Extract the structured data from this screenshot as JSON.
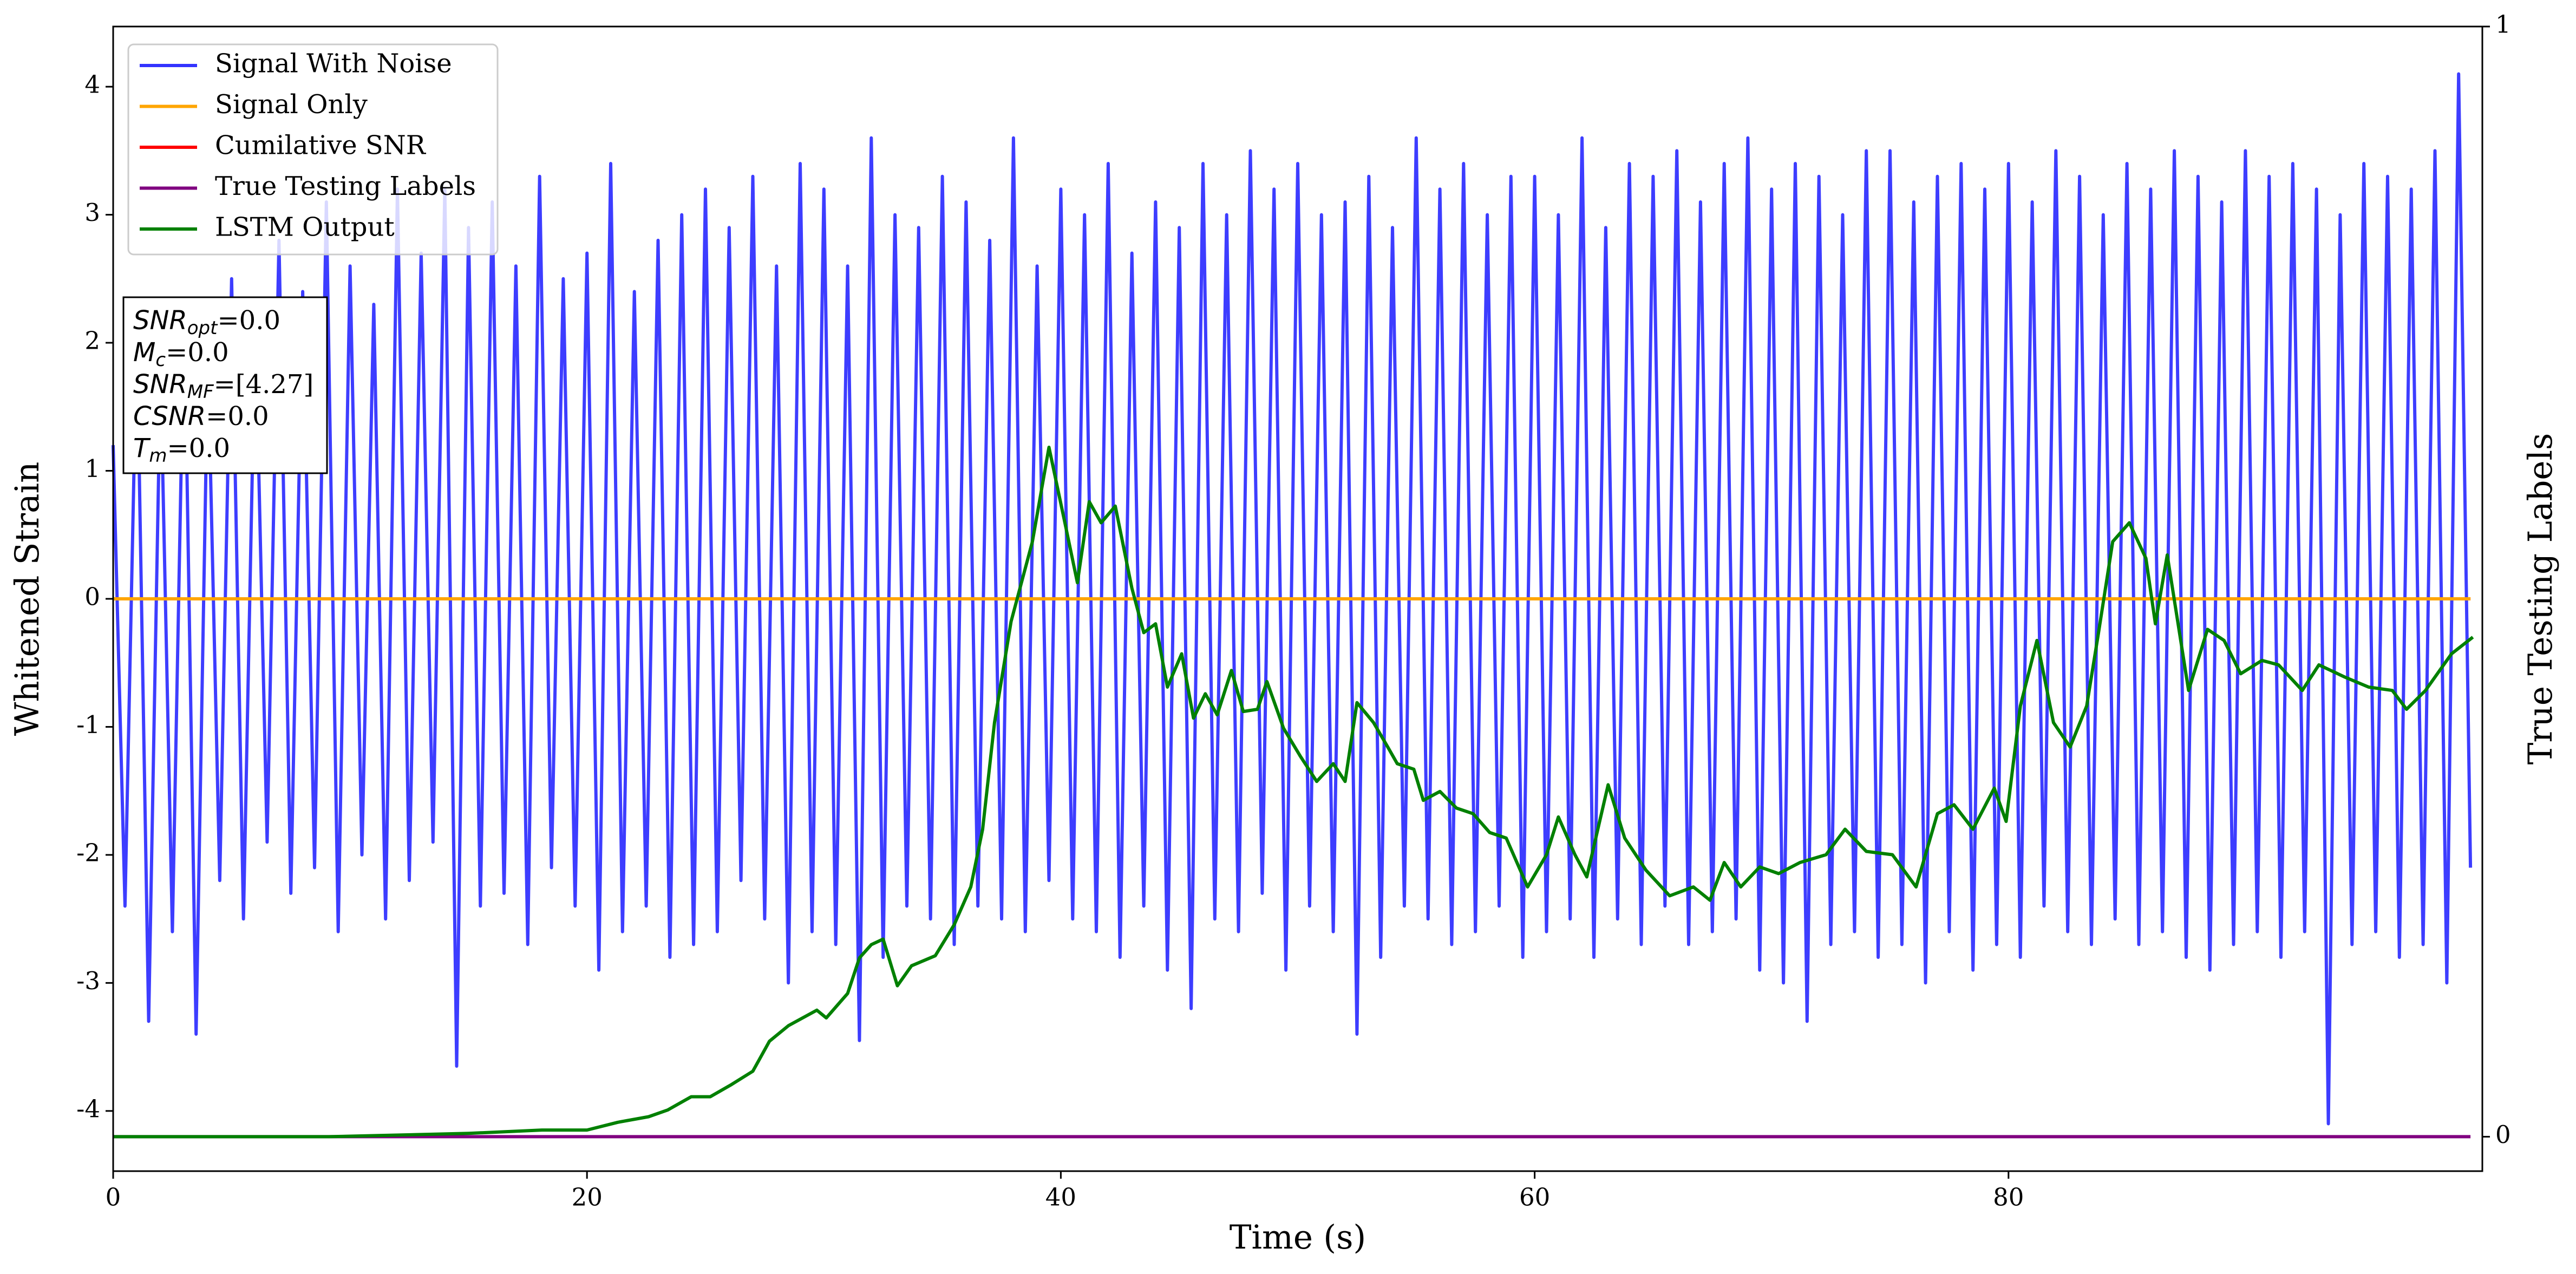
{
  "chart_data": {
    "type": "line",
    "xlabel": "Time (s)",
    "ylabel": "Whitened Strain",
    "y2label": "True Testing Labels",
    "xlim": [
      0,
      100
    ],
    "ylim": [
      -4.47,
      4.47
    ],
    "y2lim": [
      -0.031,
      1
    ],
    "xticks": [
      0,
      20,
      40,
      60,
      80
    ],
    "yticks": [
      -4,
      -3,
      -2,
      -1,
      0,
      1,
      2,
      3,
      4
    ],
    "y2ticks": [
      0,
      1
    ],
    "legend": "upper left",
    "annotation": [
      {
        "symbol": "SNR",
        "subscript": "opt",
        "text": "=0.0"
      },
      {
        "symbol": "M",
        "subscript": "c",
        "text": "=0.0"
      },
      {
        "symbol": "SNR",
        "subscript": "MF",
        "text": "=[4.27]"
      },
      {
        "symbol": "CSNR",
        "text": "=0.0"
      },
      {
        "symbol": "T",
        "subscript": "m",
        "text": "=0.0"
      }
    ],
    "series": [
      {
        "name": "Signal With Noise",
        "color": "#3333ff",
        "axis": "y",
        "x": [
          0,
          0.5,
          1,
          1.5,
          2,
          2.5,
          3,
          3.5,
          4,
          4.5,
          5,
          5.5,
          6,
          6.5,
          7,
          7.5,
          8,
          8.5,
          9,
          9.5,
          10,
          10.5,
          11,
          11.5,
          12,
          12.5,
          13,
          13.5,
          14,
          14.5,
          15,
          15.5,
          16,
          16.5,
          17,
          17.5,
          18,
          18.5,
          19,
          19.5,
          20,
          20.5,
          21,
          21.5,
          22,
          22.5,
          23,
          23.5,
          24,
          24.5,
          25,
          25.5,
          26,
          26.5,
          27,
          27.5,
          28,
          28.5,
          29,
          29.5,
          30,
          30.5,
          31,
          31.5,
          32,
          32.5,
          33,
          33.5,
          34,
          34.5,
          35,
          35.5,
          36,
          36.5,
          37,
          37.5,
          38,
          38.5,
          39,
          39.5,
          40,
          40.5,
          41,
          41.5,
          42,
          42.5,
          43,
          43.5,
          44,
          44.5,
          45,
          45.5,
          46,
          46.5,
          47,
          47.5,
          48,
          48.5,
          49,
          49.5,
          50,
          50.5,
          51,
          51.5,
          52,
          52.5,
          53,
          53.5,
          54,
          54.5,
          55,
          55.5,
          56,
          56.5,
          57,
          57.5,
          58,
          58.5,
          59,
          59.5,
          60,
          60.5,
          61,
          61.5,
          62,
          62.5,
          63,
          63.5,
          64,
          64.5,
          65,
          65.5,
          66,
          66.5,
          67,
          67.5,
          68,
          68.5,
          69,
          69.5,
          70,
          70.5,
          71,
          71.5,
          72,
          72.5,
          73,
          73.5,
          74,
          74.5,
          75,
          75.5,
          76,
          76.5,
          77,
          77.5,
          78,
          78.5,
          79,
          79.5,
          80,
          80.5,
          81,
          81.5,
          82,
          82.5,
          83,
          83.5,
          84,
          84.5,
          85,
          85.5,
          86,
          86.5,
          87,
          87.5,
          88,
          88.5,
          89,
          89.5,
          90,
          90.5,
          91,
          91.5,
          92,
          92.5,
          93,
          93.5,
          94,
          94.5,
          95,
          95.5,
          96,
          96.5,
          97,
          97.5,
          98,
          98.5,
          99,
          99.5
        ],
        "values": [
          1.2,
          -2.4,
          2.1,
          -3.3,
          1.8,
          -2.6,
          2.3,
          -3.4,
          1.9,
          -2.2,
          2.5,
          -2.5,
          2.2,
          -1.9,
          2.8,
          -2.3,
          2.4,
          -2.1,
          3.1,
          -2.6,
          2.6,
          -2.0,
          2.3,
          -2.5,
          3.2,
          -2.2,
          2.7,
          -1.9,
          3.2,
          -3.65,
          2.9,
          -2.4,
          3.1,
          -2.3,
          2.6,
          -2.7,
          3.3,
          -2.1,
          2.5,
          -2.4,
          2.7,
          -2.9,
          3.4,
          -2.6,
          2.4,
          -2.4,
          2.8,
          -2.8,
          3.0,
          -2.7,
          3.2,
          -2.6,
          2.9,
          -2.2,
          3.3,
          -2.5,
          2.6,
          -3.0,
          3.4,
          -2.6,
          3.2,
          -2.7,
          2.6,
          -3.45,
          3.6,
          -2.8,
          3.0,
          -2.4,
          2.9,
          -2.5,
          3.3,
          -2.7,
          3.1,
          -2.4,
          2.8,
          -2.5,
          3.6,
          -2.6,
          2.6,
          -2.2,
          3.2,
          -2.5,
          3.0,
          -2.6,
          3.4,
          -2.8,
          2.7,
          -2.4,
          3.1,
          -2.9,
          2.9,
          -3.2,
          3.4,
          -2.5,
          3.0,
          -2.6,
          3.5,
          -2.3,
          3.2,
          -2.9,
          3.4,
          -2.4,
          3.0,
          -2.6,
          3.1,
          -3.4,
          3.3,
          -2.8,
          2.9,
          -2.4,
          3.6,
          -2.5,
          3.2,
          -2.7,
          3.4,
          -2.6,
          3.0,
          -2.4,
          3.3,
          -2.8,
          3.3,
          -2.6,
          3.0,
          -2.5,
          3.6,
          -2.8,
          2.9,
          -2.5,
          3.4,
          -2.7,
          3.3,
          -2.4,
          3.5,
          -2.7,
          3.1,
          -2.6,
          3.4,
          -2.5,
          3.6,
          -2.9,
          3.2,
          -3.0,
          3.4,
          -3.3,
          3.3,
          -2.7,
          3.0,
          -2.6,
          3.5,
          -2.8,
          3.5,
          -2.7,
          3.1,
          -3.0,
          3.3,
          -2.6,
          3.4,
          -2.9,
          3.2,
          -2.7,
          3.4,
          -2.8,
          3.1,
          -2.4,
          3.5,
          -2.6,
          3.3,
          -2.7,
          3.0,
          -2.5,
          3.4,
          -2.7,
          3.2,
          -2.6,
          3.5,
          -2.8,
          3.3,
          -2.9,
          3.1,
          -2.7,
          3.5,
          -2.6,
          3.3,
          -2.8,
          3.4,
          -2.6,
          3.2,
          -4.1,
          3.0,
          -2.7,
          3.4,
          -2.6,
          3.3,
          -2.8,
          3.2,
          -2.7,
          3.5,
          -3.0,
          4.1,
          -2.1
        ]
      },
      {
        "name": "Cumilative SNR",
        "color": "#ff0000",
        "axis": "y",
        "x": [
          0,
          99.5
        ],
        "values": [
          0,
          0
        ]
      },
      {
        "name": "Signal Only",
        "color": "#ffa500",
        "axis": "y",
        "x": [
          0,
          99.5
        ],
        "values": [
          0,
          0
        ]
      },
      {
        "name": "True Testing Labels",
        "color": "#800080",
        "axis": "y2",
        "x": [
          0,
          99.5
        ],
        "values": [
          0,
          0
        ]
      },
      {
        "name": "LSTM Output",
        "color": "#008000",
        "axis": "y2",
        "x": [
          0,
          9.1,
          15,
          18.1,
          20,
          21.3,
          22.6,
          23.4,
          24.4,
          25.2,
          26.1,
          27,
          27.7,
          28.5,
          29.7,
          30.1,
          31,
          31.5,
          32,
          32.5,
          33.1,
          33.7,
          34.7,
          35.5,
          36.2,
          36.7,
          37.2,
          37.9,
          38.8,
          39.5,
          40.2,
          40.7,
          41.2,
          41.7,
          42.3,
          43,
          43.5,
          44,
          44.5,
          45.1,
          45.6,
          46.1,
          46.6,
          47.2,
          47.7,
          48.3,
          48.7,
          49.4,
          50.1,
          50.8,
          51.5,
          52,
          52.5,
          53.2,
          53.8,
          54.2,
          54.9,
          55.3,
          56,
          56.7,
          57.4,
          58.1,
          58.8,
          59.7,
          60.5,
          61,
          61.7,
          62.2,
          63.1,
          63.8,
          64.7,
          65.7,
          66.7,
          67.4,
          68,
          68.7,
          69.5,
          70.3,
          71.2,
          72.3,
          73.1,
          74,
          75.1,
          76.1,
          77,
          77.7,
          78.5,
          79.4,
          79.9,
          80.5,
          81.2,
          81.9,
          82.6,
          83.3,
          83.8,
          84.4,
          85.1,
          85.8,
          86.2,
          86.7,
          87.6,
          88.4,
          89.1,
          89.8,
          90.7,
          91.4,
          92.4,
          93.1,
          94.2,
          95.2,
          96.2,
          96.8,
          97.6,
          98.7,
          99.6
        ],
        "values": [
          0,
          0,
          0.003,
          0.006,
          0.006,
          0.013,
          0.018,
          0.024,
          0.036,
          0.036,
          0.047,
          0.059,
          0.086,
          0.1,
          0.114,
          0.107,
          0.129,
          0.161,
          0.173,
          0.178,
          0.136,
          0.154,
          0.163,
          0.191,
          0.225,
          0.277,
          0.373,
          0.464,
          0.536,
          0.621,
          0.55,
          0.499,
          0.572,
          0.553,
          0.568,
          0.494,
          0.454,
          0.462,
          0.405,
          0.435,
          0.377,
          0.399,
          0.38,
          0.42,
          0.383,
          0.385,
          0.41,
          0.368,
          0.343,
          0.32,
          0.336,
          0.32,
          0.391,
          0.373,
          0.351,
          0.336,
          0.331,
          0.303,
          0.311,
          0.296,
          0.291,
          0.274,
          0.269,
          0.225,
          0.254,
          0.288,
          0.254,
          0.234,
          0.317,
          0.269,
          0.24,
          0.217,
          0.225,
          0.213,
          0.247,
          0.225,
          0.243,
          0.237,
          0.247,
          0.254,
          0.277,
          0.257,
          0.254,
          0.225,
          0.291,
          0.299,
          0.277,
          0.314,
          0.284,
          0.388,
          0.447,
          0.373,
          0.351,
          0.388,
          0.454,
          0.536,
          0.553,
          0.521,
          0.462,
          0.524,
          0.402,
          0.457,
          0.447,
          0.417,
          0.429,
          0.425,
          0.402,
          0.425,
          0.414,
          0.405,
          0.402,
          0.385,
          0.402,
          0.435,
          0.45
        ]
      }
    ]
  }
}
